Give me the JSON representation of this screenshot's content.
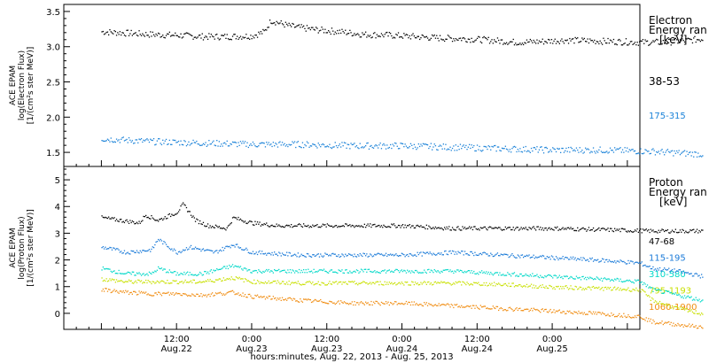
{
  "chart_data": [
    {
      "type": "scatter",
      "panel": "electron",
      "ylabel_lines": [
        "ACE EPAM",
        "log(Electron Flux)",
        "[1/(cm²s ster MeV)]"
      ],
      "ylim": [
        1.3,
        3.6
      ],
      "yticks": [
        "1.5",
        "2.0",
        "2.5",
        "3.0",
        "3.5"
      ],
      "legend_title": [
        "Electron",
        "Energy ran",
        "[keV]"
      ],
      "series": [
        {
          "name": "38-53",
          "color": "#000000",
          "points": [
            [
              0,
              3.22
            ],
            [
              4,
              3.2
            ],
            [
              8,
              3.18
            ],
            [
              12,
              3.17
            ],
            [
              16,
              3.15
            ],
            [
              20,
              3.15
            ],
            [
              24,
              3.16
            ],
            [
              26,
              3.22
            ],
            [
              27,
              3.38
            ],
            [
              30,
              3.3
            ],
            [
              34,
              3.25
            ],
            [
              38,
              3.22
            ],
            [
              42,
              3.18
            ],
            [
              46,
              3.17
            ],
            [
              50,
              3.15
            ],
            [
              54,
              3.13
            ],
            [
              58,
              3.12
            ],
            [
              62,
              3.1
            ],
            [
              66,
              3.07
            ],
            [
              70,
              3.08
            ],
            [
              74,
              3.1
            ],
            [
              78,
              3.09
            ],
            [
              82,
              3.08
            ],
            [
              86,
              3.07
            ],
            [
              90,
              3.07
            ],
            [
              94,
              3.1
            ],
            [
              96,
              3.12
            ]
          ]
        },
        {
          "name": "175-315",
          "color": "#1a82d8",
          "points": [
            [
              0,
              1.7
            ],
            [
              8,
              1.66
            ],
            [
              16,
              1.64
            ],
            [
              24,
              1.62
            ],
            [
              32,
              1.62
            ],
            [
              40,
              1.6
            ],
            [
              48,
              1.6
            ],
            [
              56,
              1.58
            ],
            [
              64,
              1.56
            ],
            [
              72,
              1.54
            ],
            [
              80,
              1.54
            ],
            [
              88,
              1.52
            ],
            [
              96,
              1.48
            ]
          ]
        }
      ]
    },
    {
      "type": "scatter",
      "panel": "proton",
      "ylabel_lines": [
        "ACE EPAM",
        "log(Proton Flux)",
        "[1/(cm²s ster MeV)]"
      ],
      "ylim": [
        -0.6,
        5.5
      ],
      "yticks": [
        "0",
        "1",
        "2",
        "3",
        "4",
        "5"
      ],
      "legend_title": [
        "Proton",
        "Energy ran",
        "[keV]"
      ],
      "series": [
        {
          "name": "47-68",
          "color": "#000000",
          "points": [
            [
              0,
              3.6
            ],
            [
              3,
              3.5
            ],
            [
              6,
              3.4
            ],
            [
              7,
              3.7
            ],
            [
              9,
              3.5
            ],
            [
              12,
              3.8
            ],
            [
              13,
              4.1
            ],
            [
              15,
              3.5
            ],
            [
              17,
              3.3
            ],
            [
              20,
              3.2
            ],
            [
              21,
              3.6
            ],
            [
              24,
              3.4
            ],
            [
              28,
              3.3
            ],
            [
              32,
              3.3
            ],
            [
              40,
              3.3
            ],
            [
              48,
              3.3
            ],
            [
              56,
              3.2
            ],
            [
              64,
              3.2
            ],
            [
              72,
              3.2
            ],
            [
              80,
              3.15
            ],
            [
              88,
              3.1
            ],
            [
              96,
              3.1
            ]
          ]
        },
        {
          "name": "115-195",
          "color": "#1a7ad8",
          "points": [
            [
              0,
              2.5
            ],
            [
              4,
              2.3
            ],
            [
              8,
              2.4
            ],
            [
              9,
              2.8
            ],
            [
              12,
              2.3
            ],
            [
              14,
              2.5
            ],
            [
              18,
              2.3
            ],
            [
              21,
              2.6
            ],
            [
              24,
              2.3
            ],
            [
              32,
              2.2
            ],
            [
              40,
              2.2
            ],
            [
              48,
              2.2
            ],
            [
              56,
              2.3
            ],
            [
              64,
              2.2
            ],
            [
              72,
              2.1
            ],
            [
              80,
              2.0
            ],
            [
              86,
              1.9
            ],
            [
              88,
              1.7
            ],
            [
              92,
              1.6
            ],
            [
              96,
              1.4
            ]
          ]
        },
        {
          "name": "310-580",
          "color": "#00d8c8",
          "points": [
            [
              0,
              1.7
            ],
            [
              4,
              1.5
            ],
            [
              8,
              1.5
            ],
            [
              9,
              1.7
            ],
            [
              12,
              1.5
            ],
            [
              16,
              1.5
            ],
            [
              21,
              1.8
            ],
            [
              24,
              1.6
            ],
            [
              32,
              1.6
            ],
            [
              40,
              1.6
            ],
            [
              48,
              1.6
            ],
            [
              56,
              1.6
            ],
            [
              64,
              1.5
            ],
            [
              72,
              1.4
            ],
            [
              80,
              1.3
            ],
            [
              86,
              1.2
            ],
            [
              88,
              0.9
            ],
            [
              92,
              0.7
            ],
            [
              96,
              0.5
            ]
          ]
        },
        {
          "name": "795-1193",
          "color": "#c8e000",
          "points": [
            [
              0,
              1.3
            ],
            [
              4,
              1.2
            ],
            [
              8,
              1.2
            ],
            [
              12,
              1.2
            ],
            [
              16,
              1.2
            ],
            [
              21,
              1.35
            ],
            [
              24,
              1.2
            ],
            [
              32,
              1.15
            ],
            [
              40,
              1.15
            ],
            [
              48,
              1.15
            ],
            [
              56,
              1.15
            ],
            [
              64,
              1.1
            ],
            [
              72,
              1.0
            ],
            [
              80,
              0.95
            ],
            [
              86,
              0.9
            ],
            [
              88,
              0.5
            ],
            [
              92,
              0.2
            ],
            [
              96,
              0.0
            ]
          ]
        },
        {
          "name": "1060-1900",
          "color": "#f08c10",
          "points": [
            [
              0,
              0.9
            ],
            [
              4,
              0.8
            ],
            [
              8,
              0.75
            ],
            [
              12,
              0.75
            ],
            [
              16,
              0.7
            ],
            [
              21,
              0.8
            ],
            [
              24,
              0.65
            ],
            [
              32,
              0.5
            ],
            [
              40,
              0.4
            ],
            [
              48,
              0.4
            ],
            [
              56,
              0.3
            ],
            [
              64,
              0.2
            ],
            [
              72,
              0.1
            ],
            [
              80,
              0.0
            ],
            [
              86,
              -0.1
            ],
            [
              88,
              -0.3
            ],
            [
              92,
              -0.4
            ],
            [
              96,
              -0.5
            ]
          ]
        }
      ]
    }
  ],
  "x_axis": {
    "tick_labels": [
      {
        "time": "12:00",
        "date": "Aug.22",
        "hour": 12
      },
      {
        "time": "0:00",
        "date": "Aug.23",
        "hour": 24
      },
      {
        "time": "12:00",
        "date": "Aug.23",
        "hour": 36
      },
      {
        "time": "0:00",
        "date": "Aug.24",
        "hour": 48
      },
      {
        "time": "12:00",
        "date": "Aug.24",
        "hour": 60
      },
      {
        "time": "0:00",
        "date": "Aug.25",
        "hour": 72
      }
    ],
    "xlabel": "hours:minutes, Aug. 22, 2013 - Aug. 25, 2013"
  }
}
